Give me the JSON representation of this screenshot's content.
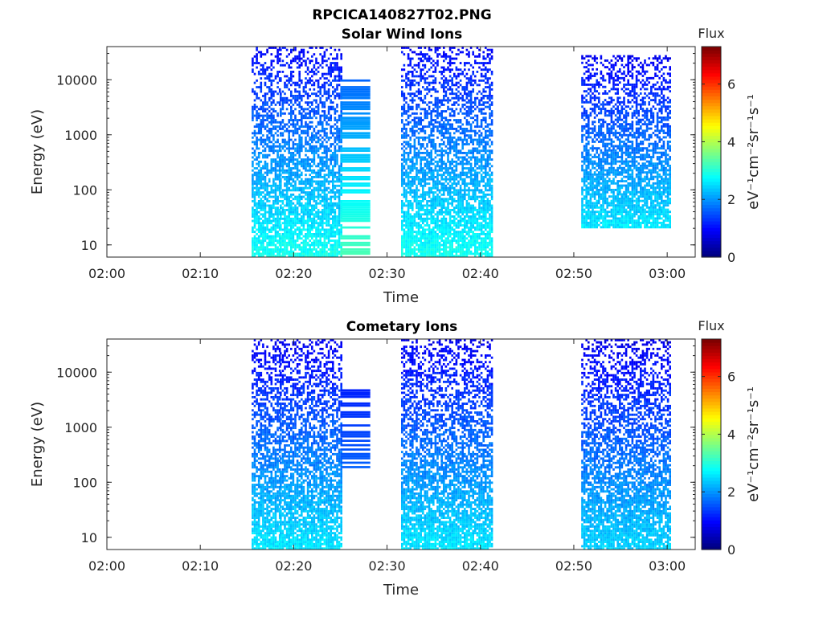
{
  "figure": {
    "title": "RPCICA140827T02.PNG"
  },
  "colorbar": {
    "label": "Flux",
    "unit_text": "eV⁻¹cm⁻²sr⁻¹s⁻¹",
    "range": [
      0,
      7.3
    ],
    "ticks": [
      "0",
      "2",
      "4",
      "6"
    ],
    "colormap": "jet"
  },
  "chart_data": [
    {
      "type": "heatmap",
      "title": "Solar Wind Ions",
      "xlabel": "Time",
      "ylabel": "Energy (eV)",
      "x_ticks": [
        "02:00",
        "02:10",
        "02:20",
        "02:30",
        "02:40",
        "02:50",
        "03:00"
      ],
      "y_ticks": [
        "10",
        "100",
        "1000",
        "10000"
      ],
      "y_scale": "log",
      "y_range_eV": [
        6,
        40000
      ],
      "x_range": [
        "02:00",
        "03:03"
      ],
      "colorbar_label": "Flux",
      "active_intervals": [
        {
          "start": "02:15.5",
          "end": "02:18.5",
          "emin_eV": 6,
          "emax_eV": 40000,
          "level": 2.0
        },
        {
          "start": "02:18.5",
          "end": "02:25",
          "emin_eV": 6,
          "emax_eV": 40000,
          "level": 2.0
        },
        {
          "start": "02:25",
          "end": "02:28.2",
          "emin_eV": 6,
          "emax_eV": 11000,
          "level": 2.2,
          "pattern": "bands"
        },
        {
          "start": "02:31.5",
          "end": "02:41.2",
          "emin_eV": 6,
          "emax_eV": 40000,
          "level": 2.0
        },
        {
          "start": "02:50.8",
          "end": "03:00.3",
          "emin_eV": 20,
          "emax_eV": 30000,
          "level": 1.8
        }
      ]
    },
    {
      "type": "heatmap",
      "title": "Cometary Ions",
      "xlabel": "Time",
      "ylabel": "Energy (eV)",
      "x_ticks": [
        "02:00",
        "02:10",
        "02:20",
        "02:30",
        "02:40",
        "02:50",
        "03:00"
      ],
      "y_ticks": [
        "10",
        "100",
        "1000",
        "10000"
      ],
      "y_scale": "log",
      "y_range_eV": [
        6,
        40000
      ],
      "x_range": [
        "02:00",
        "03:03"
      ],
      "colorbar_label": "Flux",
      "active_intervals": [
        {
          "start": "02:15.5",
          "end": "02:18.5",
          "emin_eV": 6,
          "emax_eV": 40000,
          "level": 1.8
        },
        {
          "start": "02:18.5",
          "end": "02:25",
          "emin_eV": 6,
          "emax_eV": 40000,
          "level": 1.8
        },
        {
          "start": "02:25",
          "end": "02:28.2",
          "emin_eV": 180,
          "emax_eV": 5800,
          "level": 1.4,
          "pattern": "bands"
        },
        {
          "start": "02:31.5",
          "end": "02:41.2",
          "emin_eV": 6,
          "emax_eV": 40000,
          "level": 1.8
        },
        {
          "start": "02:50.8",
          "end": "03:00.3",
          "emin_eV": 6,
          "emax_eV": 40000,
          "level": 1.7
        }
      ]
    }
  ]
}
